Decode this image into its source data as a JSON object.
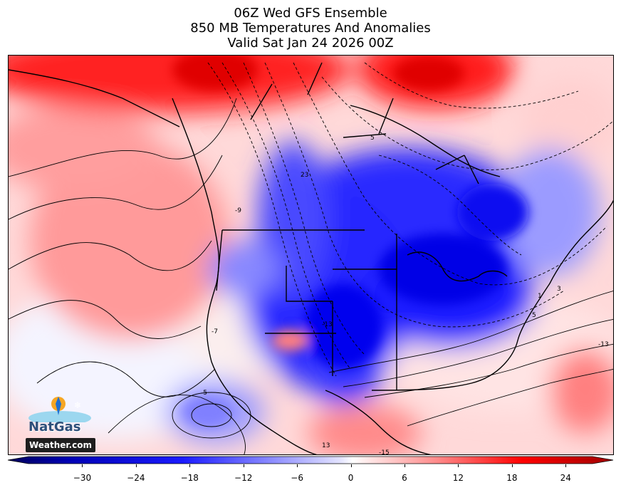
{
  "header": {
    "line1": "06Z Wed GFS Ensemble",
    "line2": "850 MB Temperatures And Anomalies",
    "line3": "Valid Sat Jan 24 2026 00Z"
  },
  "colorbar": {
    "ticks": [
      "−30",
      "−24",
      "−18",
      "−12",
      "−6",
      "0",
      "6",
      "12",
      "18",
      "24"
    ],
    "tick_values": [
      -30,
      -24,
      -18,
      -12,
      -6,
      0,
      6,
      12,
      18,
      24
    ],
    "range": [
      -36,
      27
    ],
    "colors": [
      "#00005a",
      "#0000cc",
      "#1b1bff",
      "#6a6aff",
      "#b4b4ff",
      "#ffffff",
      "#ffb4b4",
      "#ff5a5a",
      "#ff0000",
      "#a00000"
    ]
  },
  "contour_labels": [
    "23",
    "5",
    "-9",
    "-13",
    "-7",
    "-5",
    "5",
    "3",
    "1",
    "-13",
    "-15",
    "13"
  ],
  "logo": {
    "brand": "NatGas",
    "site": "Weather.com"
  },
  "legend_colors": {
    "cold_max": "#0000e0",
    "warm_max": "#ff0000",
    "neutral": "#ffffff"
  }
}
